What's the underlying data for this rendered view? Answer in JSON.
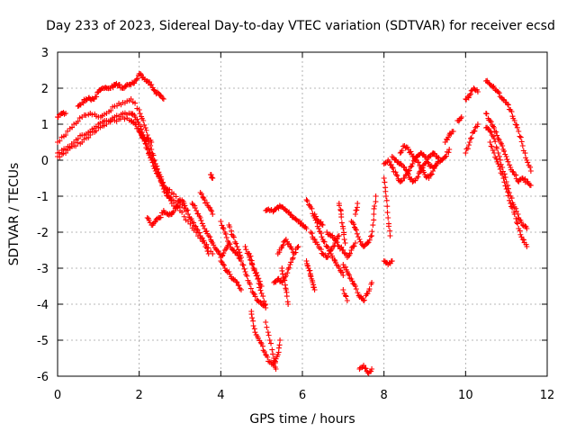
{
  "chart_data": {
    "type": "scatter",
    "title": "Day 233 of 2023, Sidereal Day-to-day VTEC variation (SDTVAR) for receiver ecsd",
    "xlabel": "GPS time / hours",
    "ylabel": "SDTVAR / TECUs",
    "xlim": [
      0,
      12
    ],
    "ylim": [
      -6,
      3
    ],
    "x_ticks": [
      "0",
      "2",
      "4",
      "6",
      "8",
      "10",
      "12"
    ],
    "y_ticks": [
      "3",
      "2",
      "1",
      "0",
      "-1",
      "-2",
      "-3",
      "-4",
      "-5",
      "-6"
    ],
    "grid": true,
    "marker": "+",
    "marker_color": "#ff0000",
    "series_traces": [
      [
        [
          0.0,
          0.5
        ],
        [
          0.2,
          0.7
        ],
        [
          0.4,
          1.0
        ],
        [
          0.6,
          1.2
        ],
        [
          0.8,
          1.3
        ],
        [
          1.0,
          1.2
        ],
        [
          1.2,
          1.3
        ],
        [
          1.4,
          1.5
        ],
        [
          1.6,
          1.6
        ],
        [
          1.8,
          1.7
        ],
        [
          2.0,
          1.4
        ],
        [
          2.1,
          1.1
        ],
        [
          2.2,
          0.7
        ],
        [
          2.3,
          0.3
        ],
        [
          2.4,
          -0.1
        ],
        [
          2.5,
          -0.4
        ],
        [
          2.6,
          -0.7
        ],
        [
          2.7,
          -0.9
        ],
        [
          2.8,
          -1.1
        ],
        [
          3.0,
          -1.3
        ]
      ],
      [
        [
          0.0,
          0.2
        ],
        [
          0.2,
          0.3
        ],
        [
          0.4,
          0.5
        ],
        [
          0.6,
          0.7
        ],
        [
          0.8,
          0.8
        ],
        [
          1.0,
          1.0
        ],
        [
          1.2,
          1.1
        ],
        [
          1.4,
          1.1
        ],
        [
          1.6,
          1.2
        ],
        [
          1.8,
          1.1
        ],
        [
          1.9,
          1.0
        ],
        [
          2.0,
          0.8
        ],
        [
          2.1,
          0.6
        ],
        [
          2.2,
          0.3
        ],
        [
          2.3,
          0.0
        ],
        [
          2.4,
          -0.3
        ],
        [
          2.5,
          -0.5
        ],
        [
          2.6,
          -0.7
        ],
        [
          2.8,
          -0.9
        ],
        [
          3.0,
          -1.2
        ],
        [
          3.2,
          -1.5
        ]
      ],
      [
        [
          0.0,
          0.1
        ],
        [
          0.2,
          0.2
        ],
        [
          0.4,
          0.4
        ],
        [
          0.6,
          0.5
        ],
        [
          0.8,
          0.7
        ],
        [
          1.0,
          0.9
        ],
        [
          1.2,
          1.0
        ],
        [
          1.4,
          1.2
        ],
        [
          1.6,
          1.3
        ],
        [
          1.8,
          1.3
        ],
        [
          1.9,
          1.2
        ],
        [
          2.0,
          1.0
        ],
        [
          2.1,
          0.7
        ],
        [
          2.2,
          0.4
        ],
        [
          2.3,
          0.1
        ],
        [
          2.4,
          -0.2
        ],
        [
          2.5,
          -0.5
        ],
        [
          2.6,
          -0.8
        ],
        [
          2.7,
          -1.0
        ],
        [
          2.8,
          -1.2
        ],
        [
          3.0,
          -1.4
        ],
        [
          3.2,
          -1.7
        ],
        [
          3.4,
          -2.0
        ],
        [
          3.6,
          -2.3
        ],
        [
          3.8,
          -2.6
        ]
      ],
      [
        [
          0.0,
          1.2
        ],
        [
          0.1,
          1.3
        ],
        [
          0.2,
          1.3
        ]
      ],
      [
        [
          0.5,
          1.5
        ],
        [
          0.6,
          1.6
        ],
        [
          0.7,
          1.7
        ],
        [
          0.8,
          1.7
        ],
        [
          0.9,
          1.7
        ],
        [
          1.0,
          1.9
        ],
        [
          1.1,
          2.0
        ],
        [
          1.2,
          2.0
        ],
        [
          1.3,
          2.0
        ],
        [
          1.4,
          2.1
        ],
        [
          1.5,
          2.1
        ],
        [
          1.6,
          2.0
        ],
        [
          1.7,
          2.1
        ],
        [
          1.8,
          2.1
        ],
        [
          1.9,
          2.2
        ],
        [
          2.0,
          2.4
        ],
        [
          2.1,
          2.3
        ],
        [
          2.2,
          2.2
        ],
        [
          2.3,
          2.1
        ],
        [
          2.4,
          1.9
        ],
        [
          2.5,
          1.8
        ],
        [
          2.6,
          1.7
        ]
      ],
      [
        [
          2.0,
          0.8
        ],
        [
          2.1,
          0.6
        ],
        [
          2.2,
          0.6
        ],
        [
          2.3,
          0.5
        ]
      ],
      [
        [
          2.2,
          -1.6
        ],
        [
          2.3,
          -1.8
        ],
        [
          2.4,
          -1.7
        ],
        [
          2.5,
          -1.6
        ],
        [
          2.6,
          -1.4
        ],
        [
          2.7,
          -1.5
        ],
        [
          2.8,
          -1.5
        ],
        [
          2.9,
          -1.3
        ],
        [
          3.0,
          -1.1
        ],
        [
          3.1,
          -1.2
        ],
        [
          3.2,
          -1.5
        ],
        [
          3.3,
          -1.7
        ],
        [
          3.4,
          -1.9
        ],
        [
          3.5,
          -2.1
        ],
        [
          3.6,
          -2.3
        ],
        [
          3.7,
          -2.6
        ]
      ],
      [
        [
          3.3,
          -1.2
        ],
        [
          3.4,
          -1.4
        ],
        [
          3.5,
          -1.6
        ],
        [
          3.6,
          -1.9
        ],
        [
          3.7,
          -2.1
        ],
        [
          3.8,
          -2.3
        ],
        [
          3.9,
          -2.5
        ],
        [
          4.0,
          -2.7
        ],
        [
          4.1,
          -2.5
        ],
        [
          4.2,
          -2.3
        ]
      ],
      [
        [
          3.5,
          -0.9
        ],
        [
          3.6,
          -1.1
        ],
        [
          3.7,
          -1.3
        ],
        [
          3.8,
          -1.5
        ]
      ],
      [
        [
          3.75,
          -0.4
        ],
        [
          3.8,
          -0.5
        ]
      ],
      [
        [
          4.0,
          -1.7
        ],
        [
          4.1,
          -2.0
        ],
        [
          4.2,
          -2.3
        ],
        [
          4.3,
          -2.5
        ],
        [
          4.4,
          -2.6
        ],
        [
          4.5,
          -2.8
        ],
        [
          4.6,
          -3.1
        ],
        [
          4.7,
          -3.4
        ],
        [
          4.8,
          -3.7
        ],
        [
          4.9,
          -3.9
        ],
        [
          5.0,
          -4.0
        ],
        [
          5.1,
          -4.0
        ]
      ],
      [
        [
          4.0,
          -2.8
        ],
        [
          4.1,
          -3.0
        ],
        [
          4.2,
          -3.1
        ],
        [
          4.3,
          -3.3
        ],
        [
          4.4,
          -3.4
        ],
        [
          4.5,
          -3.6
        ]
      ],
      [
        [
          4.2,
          -1.8
        ],
        [
          4.3,
          -2.1
        ],
        [
          4.4,
          -2.4
        ],
        [
          4.5,
          -2.7
        ]
      ],
      [
        [
          4.6,
          -2.4
        ],
        [
          4.7,
          -2.7
        ],
        [
          4.8,
          -3.0
        ],
        [
          4.9,
          -3.3
        ],
        [
          5.0,
          -3.7
        ],
        [
          5.1,
          -4.1
        ]
      ],
      [
        [
          4.7,
          -2.6
        ],
        [
          4.8,
          -3.0
        ],
        [
          4.9,
          -3.2
        ],
        [
          5.0,
          -3.5
        ]
      ],
      [
        [
          4.75,
          -4.2
        ],
        [
          4.8,
          -4.6
        ],
        [
          4.9,
          -4.9
        ],
        [
          5.0,
          -5.1
        ],
        [
          5.1,
          -5.4
        ],
        [
          5.2,
          -5.6
        ],
        [
          5.3,
          -5.7
        ],
        [
          5.4,
          -5.4
        ],
        [
          5.45,
          -5.0
        ]
      ],
      [
        [
          5.1,
          -4.5
        ],
        [
          5.2,
          -5.0
        ],
        [
          5.3,
          -5.5
        ],
        [
          5.35,
          -5.8
        ]
      ],
      [
        [
          5.1,
          -1.4
        ],
        [
          5.2,
          -1.4
        ],
        [
          5.3,
          -1.4
        ],
        [
          5.4,
          -1.3
        ],
        [
          5.5,
          -1.3
        ],
        [
          5.6,
          -1.4
        ],
        [
          5.7,
          -1.5
        ],
        [
          5.8,
          -1.6
        ],
        [
          5.9,
          -1.7
        ],
        [
          6.0,
          -1.8
        ],
        [
          6.1,
          -1.9
        ]
      ],
      [
        [
          5.3,
          -3.4
        ],
        [
          5.4,
          -3.3
        ],
        [
          5.5,
          -3.4
        ],
        [
          5.6,
          -3.2
        ],
        [
          5.7,
          -2.9
        ],
        [
          5.8,
          -2.6
        ],
        [
          5.9,
          -2.4
        ]
      ],
      [
        [
          5.4,
          -2.6
        ],
        [
          5.5,
          -2.4
        ],
        [
          5.6,
          -2.2
        ],
        [
          5.7,
          -2.4
        ],
        [
          5.8,
          -2.6
        ]
      ],
      [
        [
          5.5,
          -3.0
        ],
        [
          5.55,
          -3.3
        ],
        [
          5.6,
          -3.6
        ],
        [
          5.65,
          -4.0
        ]
      ],
      [
        [
          6.1,
          -2.8
        ],
        [
          6.15,
          -3.0
        ],
        [
          6.2,
          -3.2
        ],
        [
          6.25,
          -3.4
        ],
        [
          6.3,
          -3.6
        ]
      ],
      [
        [
          6.1,
          -1.1
        ],
        [
          6.2,
          -1.3
        ],
        [
          6.3,
          -1.6
        ],
        [
          6.4,
          -1.9
        ],
        [
          6.5,
          -2.2
        ],
        [
          6.6,
          -2.4
        ],
        [
          6.7,
          -2.6
        ],
        [
          6.8,
          -2.8
        ],
        [
          6.9,
          -3.0
        ],
        [
          7.0,
          -3.2
        ]
      ],
      [
        [
          6.2,
          -2.0
        ],
        [
          6.3,
          -2.2
        ],
        [
          6.4,
          -2.4
        ],
        [
          6.5,
          -2.6
        ],
        [
          6.6,
          -2.7
        ],
        [
          6.7,
          -2.5
        ],
        [
          6.8,
          -2.3
        ],
        [
          6.9,
          -2.1
        ]
      ],
      [
        [
          6.3,
          -1.5
        ],
        [
          6.4,
          -1.7
        ],
        [
          6.5,
          -1.8
        ]
      ],
      [
        [
          6.6,
          -2.0
        ],
        [
          6.7,
          -2.1
        ],
        [
          6.8,
          -2.2
        ],
        [
          6.9,
          -2.4
        ],
        [
          7.0,
          -2.5
        ],
        [
          7.1,
          -2.7
        ],
        [
          7.2,
          -2.5
        ],
        [
          7.3,
          -2.3
        ]
      ],
      [
        [
          6.9,
          -1.2
        ],
        [
          6.95,
          -1.5
        ],
        [
          7.0,
          -1.9
        ],
        [
          7.05,
          -2.3
        ]
      ],
      [
        [
          7.0,
          -2.9
        ],
        [
          7.1,
          -3.1
        ],
        [
          7.2,
          -3.3
        ],
        [
          7.3,
          -3.5
        ],
        [
          7.4,
          -3.8
        ],
        [
          7.5,
          -3.9
        ],
        [
          7.6,
          -3.7
        ],
        [
          7.7,
          -3.4
        ]
      ],
      [
        [
          7.0,
          -3.6
        ],
        [
          7.1,
          -3.9
        ]
      ],
      [
        [
          7.2,
          -1.7
        ],
        [
          7.3,
          -1.9
        ],
        [
          7.4,
          -2.2
        ],
        [
          7.5,
          -2.4
        ],
        [
          7.6,
          -2.3
        ],
        [
          7.7,
          -2.1
        ],
        [
          7.75,
          -1.5
        ],
        [
          7.8,
          -1.0
        ]
      ],
      [
        [
          7.3,
          -1.5
        ],
        [
          7.35,
          -1.2
        ]
      ],
      [
        [
          7.4,
          -5.8
        ],
        [
          7.5,
          -5.7
        ],
        [
          7.6,
          -5.9
        ],
        [
          7.7,
          -5.8
        ]
      ],
      [
        [
          8.0,
          -0.5
        ],
        [
          8.05,
          -1.0
        ],
        [
          8.1,
          -1.6
        ],
        [
          8.15,
          -2.1
        ]
      ],
      [
        [
          8.0,
          -2.8
        ],
        [
          8.1,
          -2.9
        ],
        [
          8.2,
          -2.8
        ]
      ],
      [
        [
          8.0,
          -0.1
        ],
        [
          8.1,
          0.0
        ],
        [
          8.2,
          -0.2
        ],
        [
          8.3,
          -0.4
        ],
        [
          8.4,
          -0.6
        ],
        [
          8.5,
          -0.5
        ],
        [
          8.6,
          -0.3
        ],
        [
          8.7,
          -0.1
        ],
        [
          8.8,
          0.1
        ],
        [
          8.9,
          0.2
        ],
        [
          9.0,
          0.1
        ],
        [
          9.1,
          -0.1
        ],
        [
          9.2,
          -0.2
        ],
        [
          9.3,
          -0.1
        ],
        [
          9.4,
          0.0
        ]
      ],
      [
        [
          8.2,
          0.1
        ],
        [
          8.3,
          0.0
        ],
        [
          8.4,
          -0.1
        ],
        [
          8.5,
          -0.2
        ],
        [
          8.6,
          -0.4
        ],
        [
          8.7,
          -0.6
        ],
        [
          8.8,
          -0.5
        ],
        [
          8.9,
          -0.3
        ],
        [
          9.0,
          -0.1
        ],
        [
          9.1,
          0.1
        ],
        [
          9.2,
          0.2
        ],
        [
          9.3,
          0.1
        ],
        [
          9.4,
          0.0
        ],
        [
          9.5,
          0.1
        ],
        [
          9.6,
          0.3
        ]
      ],
      [
        [
          8.4,
          0.2
        ],
        [
          8.5,
          0.4
        ],
        [
          8.6,
          0.3
        ],
        [
          8.7,
          0.1
        ],
        [
          8.8,
          0.0
        ],
        [
          8.9,
          -0.2
        ],
        [
          9.0,
          -0.4
        ],
        [
          9.1,
          -0.5
        ],
        [
          9.2,
          -0.3
        ],
        [
          9.3,
          -0.1
        ]
      ],
      [
        [
          9.5,
          0.5
        ],
        [
          9.6,
          0.7
        ],
        [
          9.7,
          0.8
        ]
      ],
      [
        [
          9.8,
          1.1
        ],
        [
          9.9,
          1.2
        ]
      ],
      [
        [
          10.0,
          0.2
        ],
        [
          10.1,
          0.5
        ],
        [
          10.2,
          0.8
        ],
        [
          10.3,
          1.0
        ]
      ],
      [
        [
          10.0,
          1.7
        ],
        [
          10.1,
          1.8
        ],
        [
          10.2,
          2.0
        ],
        [
          10.3,
          1.9
        ]
      ],
      [
        [
          10.5,
          2.2
        ],
        [
          10.6,
          2.1
        ],
        [
          10.7,
          2.0
        ],
        [
          10.8,
          1.9
        ],
        [
          10.9,
          1.7
        ],
        [
          11.0,
          1.6
        ],
        [
          11.1,
          1.4
        ],
        [
          11.2,
          1.1
        ],
        [
          11.3,
          0.8
        ],
        [
          11.4,
          0.4
        ],
        [
          11.5,
          0.0
        ],
        [
          11.6,
          -0.3
        ]
      ],
      [
        [
          10.5,
          1.3
        ],
        [
          10.6,
          1.1
        ],
        [
          10.7,
          0.9
        ],
        [
          10.8,
          0.6
        ],
        [
          10.9,
          0.4
        ],
        [
          11.0,
          0.1
        ],
        [
          11.1,
          -0.2
        ],
        [
          11.2,
          -0.4
        ],
        [
          11.3,
          -0.6
        ],
        [
          11.4,
          -0.5
        ],
        [
          11.5,
          -0.6
        ],
        [
          11.6,
          -0.7
        ]
      ],
      [
        [
          10.5,
          0.9
        ],
        [
          10.6,
          0.8
        ],
        [
          10.7,
          0.6
        ],
        [
          10.8,
          0.2
        ],
        [
          10.9,
          -0.2
        ],
        [
          11.0,
          -0.6
        ],
        [
          11.1,
          -1.0
        ],
        [
          11.2,
          -1.3
        ],
        [
          11.3,
          -1.6
        ],
        [
          11.4,
          -1.8
        ],
        [
          11.5,
          -1.9
        ]
      ],
      [
        [
          10.6,
          0.5
        ],
        [
          10.7,
          0.2
        ],
        [
          10.8,
          -0.1
        ],
        [
          10.9,
          -0.4
        ],
        [
          11.0,
          -0.8
        ],
        [
          11.1,
          -1.2
        ],
        [
          11.2,
          -1.5
        ],
        [
          11.3,
          -1.9
        ],
        [
          11.4,
          -2.2
        ],
        [
          11.5,
          -2.4
        ]
      ]
    ]
  }
}
